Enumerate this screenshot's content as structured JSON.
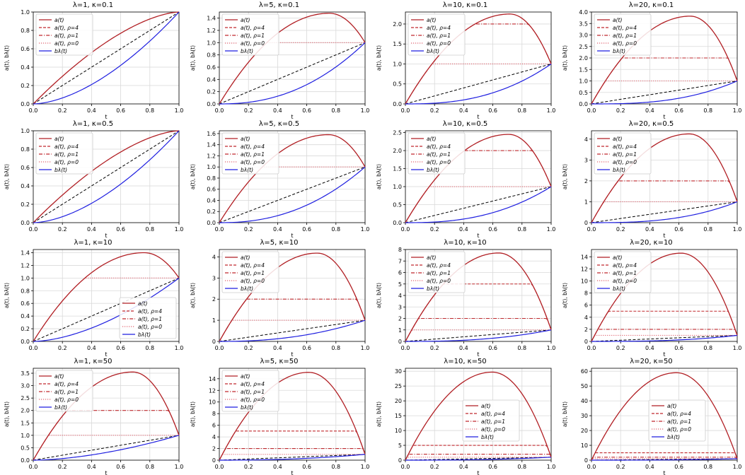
{
  "legend_labels": [
    "a(t)",
    "a(t), ρ=4",
    "a(t), ρ=1",
    "a(t), ρ=0",
    "bλ(t)"
  ],
  "xlabel": "t",
  "ylabel": "a(t), bλ(t)",
  "xticks": [
    0.0,
    0.2,
    0.4,
    0.6,
    0.8,
    1.0
  ],
  "colors": {
    "a_full": "#b11f24",
    "a_rho4": "#c0282d",
    "a_rho1": "#c0282d",
    "a_rho0": "#e06570",
    "b": "#1f1fe0",
    "diag": "#000000",
    "grid": "#d9d9d9"
  },
  "chart_data": [
    {
      "type": "line",
      "title": "λ=1, κ=0.1",
      "lambda": 1,
      "kappa": 0.1,
      "peak": 1.0,
      "ylim": [
        0,
        1.0
      ],
      "yticks": [
        0.0,
        0.2,
        0.4,
        0.6,
        0.8,
        1.0
      ],
      "legend": "top-left",
      "series": [
        {
          "name": "a(t)",
          "peak": 1.0
        }
      ]
    },
    {
      "type": "line",
      "title": "λ=5, κ=0.1",
      "lambda": 5,
      "kappa": 0.1,
      "peak": 1.48,
      "ylim": [
        0,
        1.5
      ],
      "yticks": [
        0.0,
        0.2,
        0.4,
        0.6,
        0.8,
        1.0,
        1.2,
        1.4
      ],
      "legend": "top-left",
      "series": [
        {
          "name": "a(t)",
          "peak": 1.48
        },
        {
          "name": "a(t), ρ=0",
          "cap": 1.0
        }
      ]
    },
    {
      "type": "line",
      "title": "λ=10, κ=0.1",
      "lambda": 10,
      "kappa": 0.1,
      "peak": 2.25,
      "ylim": [
        0,
        2.3
      ],
      "yticks": [
        0.0,
        0.5,
        1.0,
        1.5,
        2.0
      ],
      "legend": "top-left",
      "series": [
        {
          "name": "a(t)",
          "peak": 2.25
        },
        {
          "name": "a(t), ρ=1",
          "cap": 2.0
        },
        {
          "name": "a(t), ρ=0",
          "cap": 1.0
        }
      ]
    },
    {
      "type": "line",
      "title": "λ=20, κ=0.1",
      "lambda": 20,
      "kappa": 0.1,
      "peak": 3.82,
      "ylim": [
        0,
        4.0
      ],
      "yticks": [
        0.0,
        0.5,
        1.0,
        1.5,
        2.0,
        2.5,
        3.0,
        3.5,
        4.0
      ],
      "legend": "top-left",
      "series": [
        {
          "name": "a(t)",
          "peak": 3.82
        },
        {
          "name": "a(t), ρ=1",
          "cap": 2.0
        },
        {
          "name": "a(t), ρ=0",
          "cap": 1.0
        }
      ]
    },
    {
      "type": "line",
      "title": "λ=1, κ=0.5",
      "lambda": 1,
      "kappa": 0.5,
      "peak": 1.0,
      "ylim": [
        0,
        1.0
      ],
      "yticks": [
        0.0,
        0.2,
        0.4,
        0.6,
        0.8,
        1.0
      ],
      "legend": "top-left",
      "series": [
        {
          "name": "a(t)",
          "peak": 1.0
        }
      ]
    },
    {
      "type": "line",
      "title": "λ=5, κ=0.5",
      "lambda": 5,
      "kappa": 0.5,
      "peak": 1.58,
      "ylim": [
        0,
        1.65
      ],
      "yticks": [
        0.0,
        0.2,
        0.4,
        0.6,
        0.8,
        1.0,
        1.2,
        1.4,
        1.6
      ],
      "legend": "top-left",
      "series": [
        {
          "name": "a(t)",
          "peak": 1.58
        },
        {
          "name": "a(t), ρ=0",
          "cap": 1.0
        }
      ]
    },
    {
      "type": "line",
      "title": "λ=10, κ=0.5",
      "lambda": 10,
      "kappa": 0.5,
      "peak": 2.45,
      "ylim": [
        0,
        2.55
      ],
      "yticks": [
        0.0,
        0.5,
        1.0,
        1.5,
        2.0,
        2.5
      ],
      "legend": "top-left",
      "series": [
        {
          "name": "a(t)",
          "peak": 2.45
        },
        {
          "name": "a(t), ρ=1",
          "cap": 2.0
        },
        {
          "name": "a(t), ρ=0",
          "cap": 1.0
        }
      ]
    },
    {
      "type": "line",
      "title": "λ=20, κ=0.5",
      "lambda": 20,
      "kappa": 0.5,
      "peak": 4.25,
      "ylim": [
        0,
        4.4
      ],
      "yticks": [
        0,
        1,
        2,
        3,
        4
      ],
      "legend": "top-left",
      "series": [
        {
          "name": "a(t)",
          "peak": 4.25
        },
        {
          "name": "a(t), ρ=1",
          "cap": 2.0
        },
        {
          "name": "a(t), ρ=0",
          "cap": 1.0
        }
      ]
    },
    {
      "type": "line",
      "title": "λ=1, κ=10",
      "lambda": 1,
      "kappa": 10,
      "peak": 1.4,
      "ylim": [
        0,
        1.45
      ],
      "yticks": [
        0.0,
        0.2,
        0.4,
        0.6,
        0.8,
        1.0,
        1.2,
        1.4
      ],
      "legend": "bottom-right",
      "series": [
        {
          "name": "a(t)",
          "peak": 1.4
        },
        {
          "name": "a(t), ρ=0",
          "cap": 1.0
        }
      ]
    },
    {
      "type": "line",
      "title": "λ=5, κ=10",
      "lambda": 5,
      "kappa": 10,
      "peak": 4.18,
      "ylim": [
        0,
        4.35
      ],
      "yticks": [
        0,
        1,
        2,
        3,
        4
      ],
      "legend": "top-left",
      "series": [
        {
          "name": "a(t)",
          "peak": 4.18
        },
        {
          "name": "a(t), ρ=1",
          "cap": 2.0
        },
        {
          "name": "a(t), ρ=0",
          "cap": 1.0
        }
      ]
    },
    {
      "type": "line",
      "title": "λ=10, κ=10",
      "lambda": 10,
      "kappa": 10,
      "peak": 7.7,
      "ylim": [
        0,
        8.0
      ],
      "yticks": [
        0,
        1,
        2,
        3,
        4,
        5,
        6,
        7,
        8
      ],
      "legend": "top-left",
      "series": [
        {
          "name": "a(t)",
          "peak": 7.7
        },
        {
          "name": "a(t), ρ=4",
          "cap": 5.0
        },
        {
          "name": "a(t), ρ=1",
          "cap": 2.0
        },
        {
          "name": "a(t), ρ=0",
          "cap": 1.0
        }
      ]
    },
    {
      "type": "line",
      "title": "λ=20, κ=10",
      "lambda": 20,
      "kappa": 10,
      "peak": 14.6,
      "ylim": [
        0,
        15.2
      ],
      "yticks": [
        0,
        2,
        4,
        6,
        8,
        10,
        12,
        14
      ],
      "legend": "top-left",
      "series": [
        {
          "name": "a(t)",
          "peak": 14.6
        },
        {
          "name": "a(t), ρ=4",
          "cap": 5.0
        },
        {
          "name": "a(t), ρ=1",
          "cap": 2.0
        },
        {
          "name": "a(t), ρ=0",
          "cap": 1.0
        }
      ]
    },
    {
      "type": "line",
      "title": "λ=1, κ=50",
      "lambda": 1,
      "kappa": 50,
      "peak": 3.55,
      "ylim": [
        0,
        3.7
      ],
      "yticks": [
        0.0,
        0.5,
        1.0,
        1.5,
        2.0,
        2.5,
        3.0,
        3.5
      ],
      "legend": "top-left",
      "series": [
        {
          "name": "a(t)",
          "peak": 3.55
        },
        {
          "name": "a(t), ρ=1",
          "cap": 2.0
        },
        {
          "name": "a(t), ρ=0",
          "cap": 1.0
        }
      ]
    },
    {
      "type": "line",
      "title": "λ=5, κ=50",
      "lambda": 5,
      "kappa": 50,
      "peak": 15.1,
      "ylim": [
        0,
        15.8
      ],
      "yticks": [
        0,
        2,
        4,
        6,
        8,
        10,
        12,
        14
      ],
      "legend": "top-left",
      "series": [
        {
          "name": "a(t)",
          "peak": 15.1
        },
        {
          "name": "a(t), ρ=4",
          "cap": 5.0
        },
        {
          "name": "a(t), ρ=1",
          "cap": 2.0
        },
        {
          "name": "a(t), ρ=0",
          "cap": 1.0
        }
      ]
    },
    {
      "type": "line",
      "title": "λ=10, κ=50",
      "lambda": 10,
      "kappa": 50,
      "peak": 29.7,
      "ylim": [
        0,
        31
      ],
      "yticks": [
        0,
        5,
        10,
        15,
        20,
        25,
        30
      ],
      "legend": "center",
      "series": [
        {
          "name": "a(t)",
          "peak": 29.7
        },
        {
          "name": "a(t), ρ=4",
          "cap": 5.0
        },
        {
          "name": "a(t), ρ=1",
          "cap": 2.0
        },
        {
          "name": "a(t), ρ=0",
          "cap": 1.0
        }
      ]
    },
    {
      "type": "line",
      "title": "λ=20, κ=50",
      "lambda": 20,
      "kappa": 50,
      "peak": 59,
      "ylim": [
        0,
        62
      ],
      "yticks": [
        0,
        10,
        20,
        30,
        40,
        50,
        60
      ],
      "legend": "center",
      "series": [
        {
          "name": "a(t)",
          "peak": 59
        },
        {
          "name": "a(t), ρ=4",
          "cap": 5.0
        },
        {
          "name": "a(t), ρ=1",
          "cap": 2.0
        },
        {
          "name": "a(t), ρ=0",
          "cap": 1.0
        }
      ]
    }
  ]
}
